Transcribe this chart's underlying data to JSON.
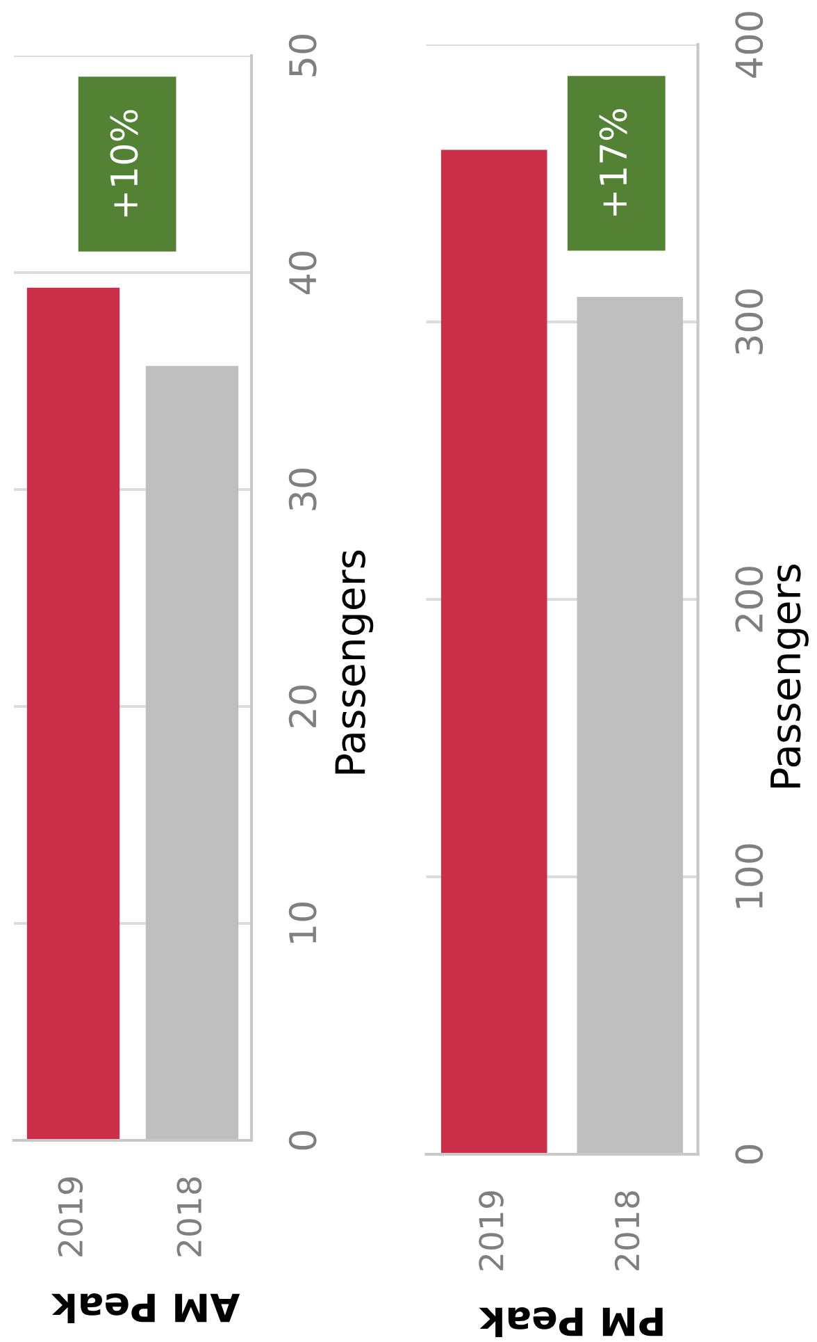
{
  "chart_data": [
    {
      "type": "bar",
      "title": "AM Peak",
      "categories": [
        "2019",
        "2018"
      ],
      "values": [
        39.3,
        35.7
      ],
      "colors": [
        "#cc2f4a",
        "#bfbfbf"
      ],
      "ylabel": "Passengers",
      "ylim": [
        0,
        50
      ],
      "yticks": [
        0,
        10,
        20,
        30,
        40,
        50
      ],
      "grid": "y",
      "annotations": [
        "+10%"
      ]
    },
    {
      "type": "bar",
      "title": "PM Peak",
      "categories": [
        "2019",
        "2018"
      ],
      "values": [
        362,
        309
      ],
      "colors": [
        "#cc2f4a",
        "#bfbfbf"
      ],
      "ylabel": "Passengers",
      "ylim": [
        0,
        400
      ],
      "yticks": [
        0,
        100,
        200,
        300,
        400
      ],
      "grid": "y",
      "annotations": [
        "+17%"
      ]
    }
  ]
}
